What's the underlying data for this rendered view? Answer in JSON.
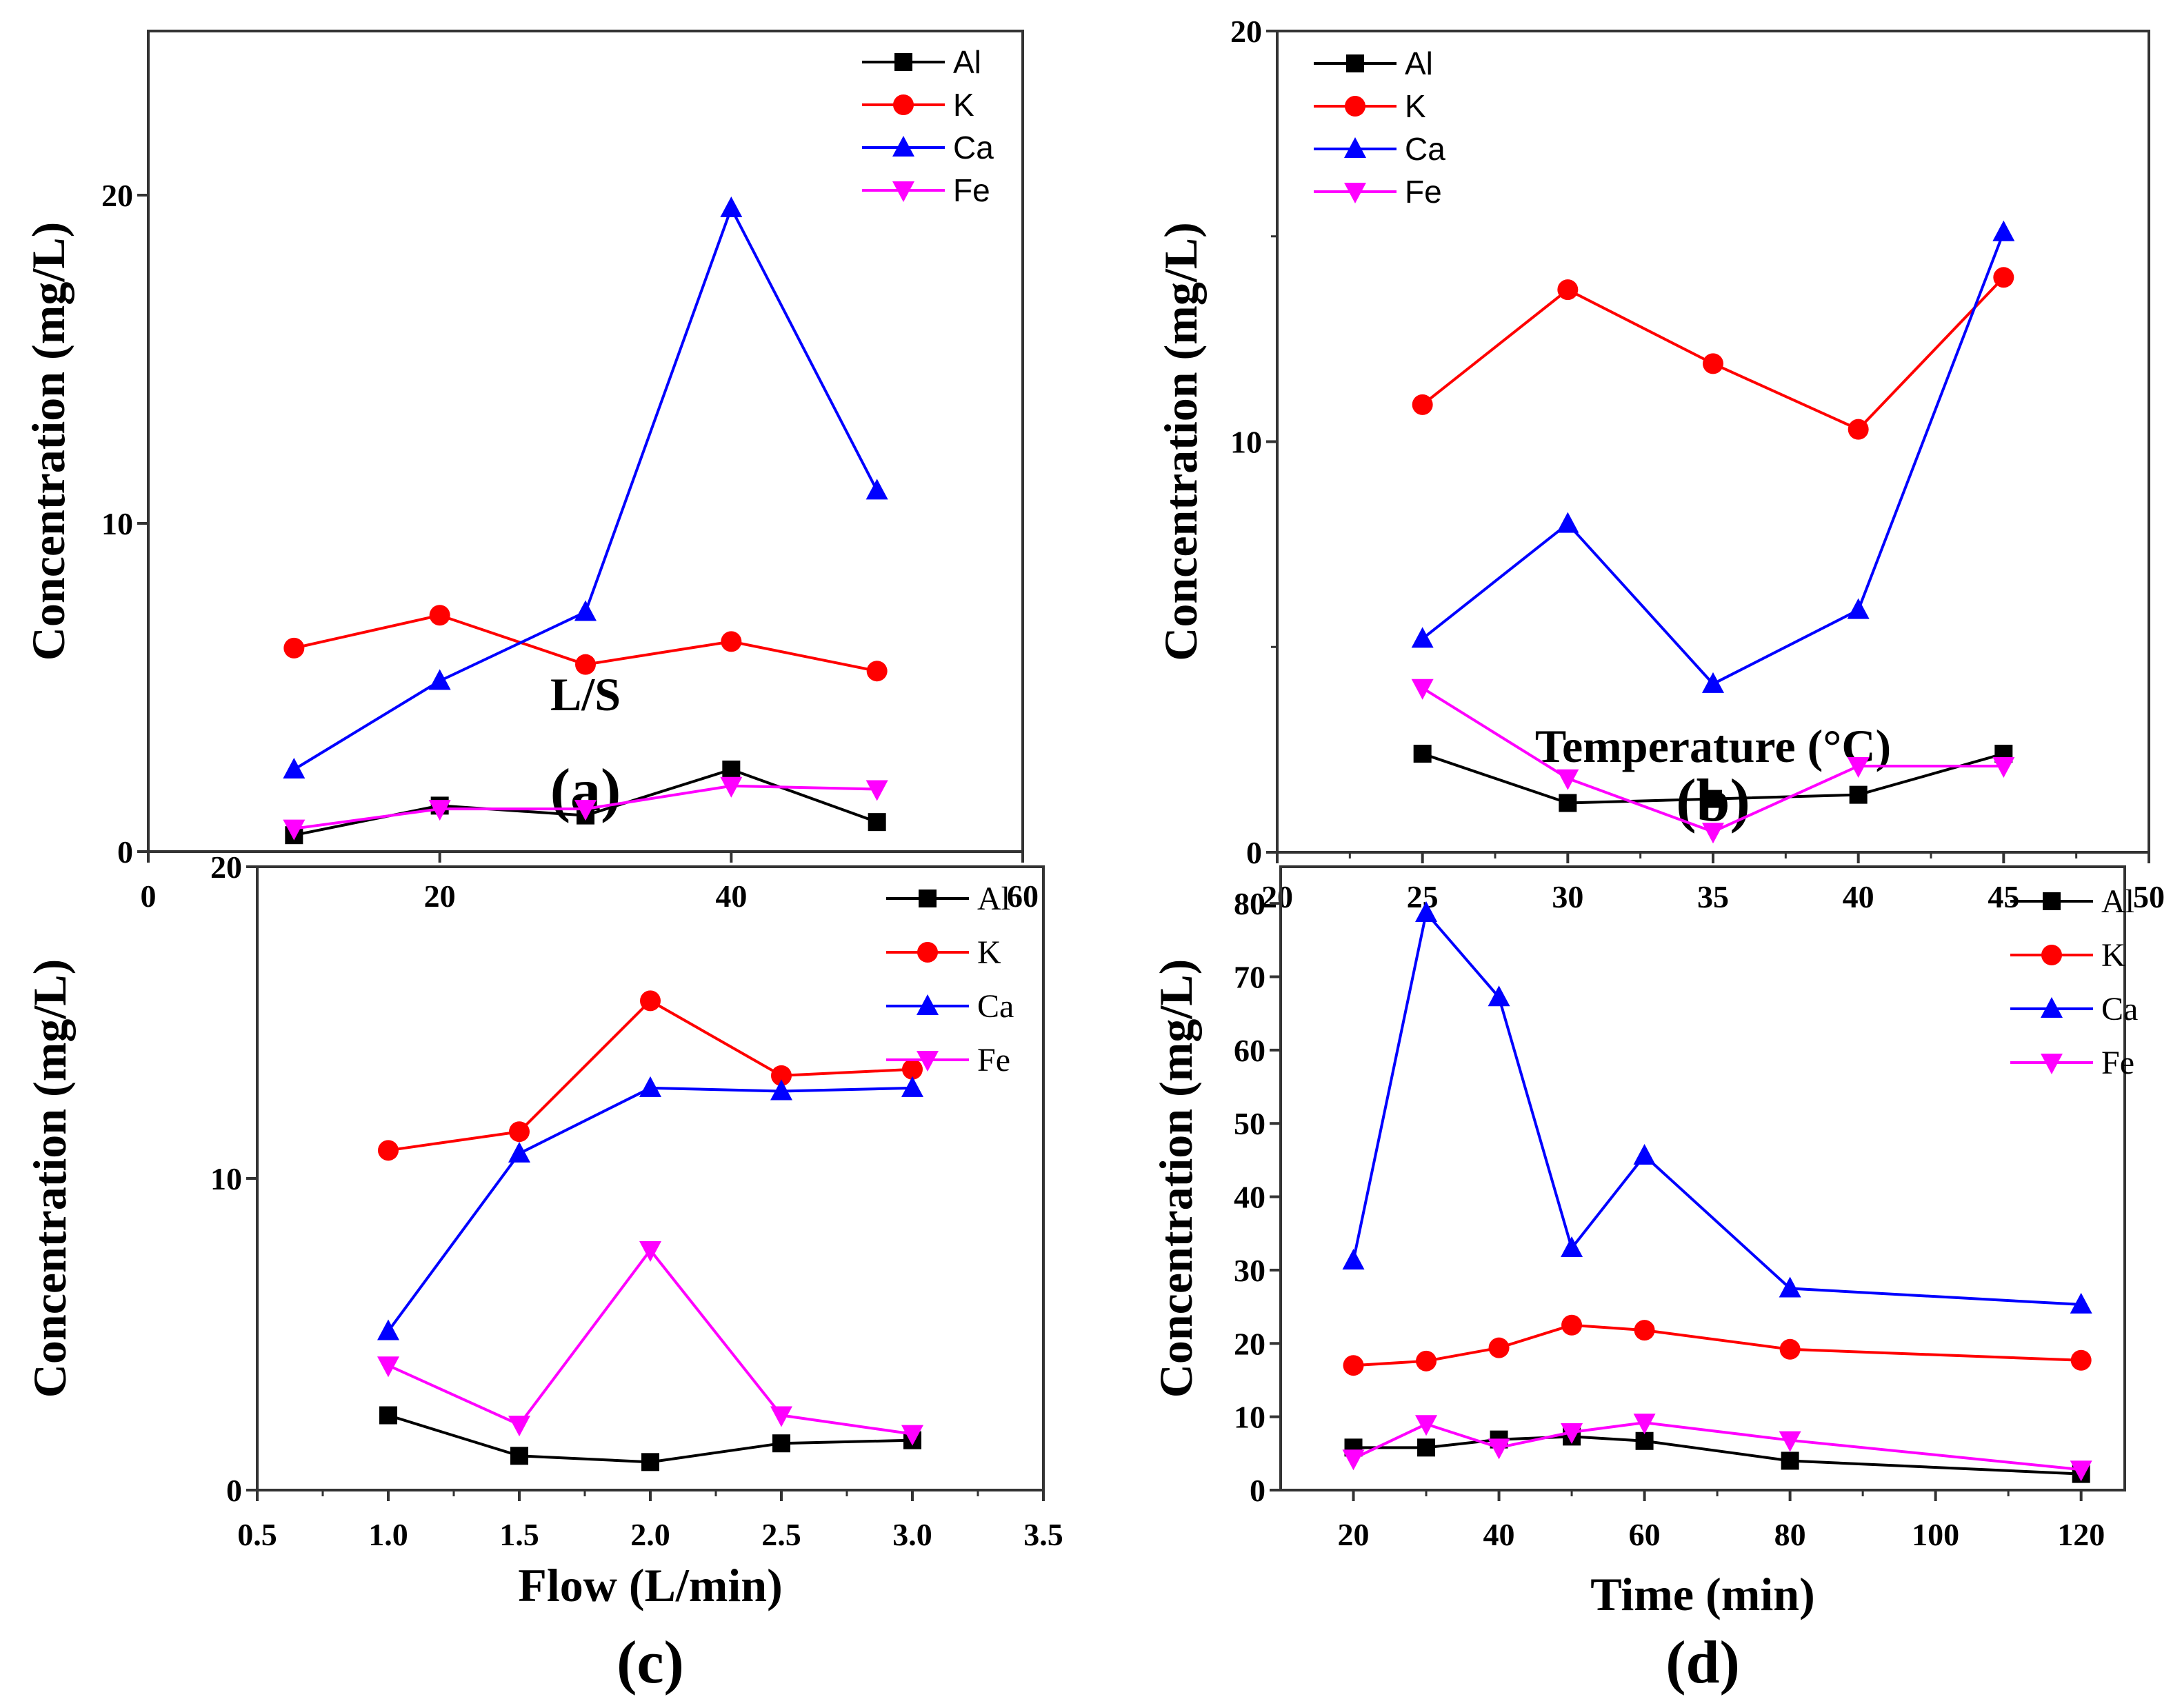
{
  "colors": {
    "Al": "#000000",
    "K": "#ff0000",
    "Ca": "#0000ff",
    "Fe": "#ff00ff"
  },
  "chart_data": [
    {
      "type": "line",
      "panel_label": "(a)",
      "xlabel": "L/S",
      "ylabel": "Concentration (mg/L)",
      "xlim": [
        0,
        60
      ],
      "ylim": [
        0,
        25
      ],
      "xticks": [
        0,
        20,
        40,
        60
      ],
      "yticks": [
        0,
        10,
        20
      ],
      "legend_position": "top-right",
      "x": [
        10,
        20,
        30,
        40,
        50
      ],
      "series": [
        {
          "name": "Al",
          "marker": "square",
          "values": [
            0.5,
            1.4,
            1.1,
            2.5,
            0.9
          ]
        },
        {
          "name": "K",
          "marker": "circle",
          "values": [
            6.2,
            7.2,
            5.7,
            6.4,
            5.5
          ]
        },
        {
          "name": "Ca",
          "marker": "triangle-up",
          "values": [
            2.5,
            5.2,
            7.3,
            19.6,
            11.0
          ]
        },
        {
          "name": "Fe",
          "marker": "triangle-down",
          "values": [
            0.7,
            1.3,
            1.3,
            2.0,
            1.9
          ]
        }
      ]
    },
    {
      "type": "line",
      "panel_label": "(b)",
      "xlabel": "Temperature (°C)",
      "ylabel": "Concentration (mg/L)",
      "xlim": [
        20,
        50
      ],
      "ylim": [
        0,
        20
      ],
      "xticks": [
        20,
        25,
        30,
        35,
        40,
        45,
        50
      ],
      "yticks": [
        0,
        10,
        20
      ],
      "legend_position": "top-left",
      "x": [
        25,
        30,
        35,
        40,
        45
      ],
      "series": [
        {
          "name": "Al",
          "marker": "square",
          "values": [
            2.4,
            1.2,
            1.3,
            1.4,
            2.4
          ]
        },
        {
          "name": "K",
          "marker": "circle",
          "values": [
            10.9,
            13.7,
            11.9,
            10.3,
            14.0
          ]
        },
        {
          "name": "Ca",
          "marker": "triangle-up",
          "values": [
            5.2,
            8.0,
            4.1,
            5.9,
            15.1
          ]
        },
        {
          "name": "Fe",
          "marker": "triangle-down",
          "values": [
            4.0,
            1.8,
            0.5,
            2.1,
            2.1
          ]
        }
      ]
    },
    {
      "type": "line",
      "panel_label": "(c)",
      "xlabel": "Flow (L/min)",
      "ylabel": "Concentration (mg/L)",
      "xlim": [
        0.5,
        3.5
      ],
      "ylim": [
        0,
        20
      ],
      "xticks": [
        "0.5",
        "1.0",
        "1.5",
        "2.0",
        "2.5",
        "3.0",
        "3.5"
      ],
      "yticks": [
        0,
        10,
        20
      ],
      "legend_position": "top-right",
      "x": [
        1.0,
        1.5,
        2.0,
        2.5,
        3.0
      ],
      "series": [
        {
          "name": "Al",
          "marker": "square",
          "values": [
            2.4,
            1.1,
            0.9,
            1.5,
            1.6
          ]
        },
        {
          "name": "K",
          "marker": "circle",
          "values": [
            10.9,
            11.5,
            15.7,
            13.3,
            13.5
          ]
        },
        {
          "name": "Ca",
          "marker": "triangle-up",
          "values": [
            5.1,
            10.8,
            12.9,
            12.8,
            12.9
          ]
        },
        {
          "name": "Fe",
          "marker": "triangle-down",
          "values": [
            4.0,
            2.1,
            7.7,
            2.4,
            1.8
          ]
        }
      ]
    },
    {
      "type": "line",
      "panel_label": "(d)",
      "xlabel": "Time (min)",
      "ylabel": "Concentration (mg/L)",
      "xlim": [
        10,
        126
      ],
      "ylim": [
        0,
        85
      ],
      "xticks": [
        20,
        40,
        60,
        80,
        100,
        120
      ],
      "yticks": [
        0,
        10,
        20,
        30,
        40,
        50,
        60,
        70,
        80
      ],
      "legend_position": "top-right",
      "x": [
        20,
        30,
        40,
        50,
        60,
        80,
        120
      ],
      "series": [
        {
          "name": "Al",
          "marker": "square",
          "values": [
            5.8,
            5.8,
            6.9,
            7.3,
            6.7,
            4.0,
            2.2
          ]
        },
        {
          "name": "K",
          "marker": "circle",
          "values": [
            17.0,
            17.6,
            19.4,
            22.5,
            21.8,
            19.2,
            17.7
          ]
        },
        {
          "name": "Ca",
          "marker": "triangle-up",
          "values": [
            31.3,
            78.7,
            67.2,
            33.0,
            45.6,
            27.5,
            25.3
          ]
        },
        {
          "name": "Fe",
          "marker": "triangle-down",
          "values": [
            4.3,
            9.0,
            5.8,
            7.9,
            9.2,
            6.8,
            2.8
          ]
        }
      ]
    }
  ]
}
